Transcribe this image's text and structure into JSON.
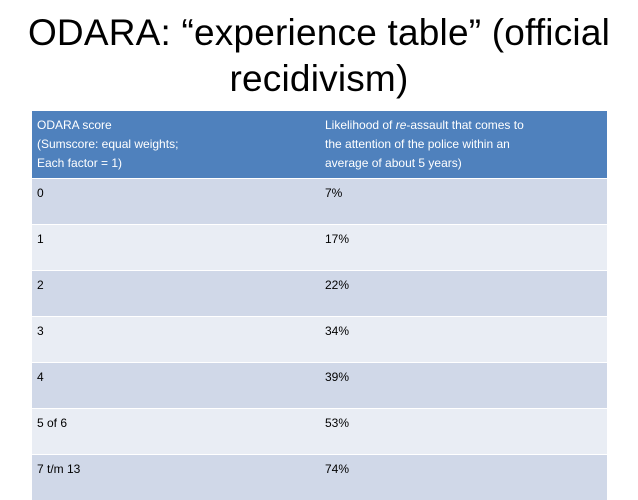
{
  "title": {
    "line1": "ODARA: “experience table” (official",
    "line2": "recidivism)"
  },
  "table": {
    "header": {
      "col1": {
        "line1": "ODARA score",
        "line2": "(Sumscore: equal weights;",
        "line3": "Each factor = 1)"
      },
      "col2": {
        "line1_pre": "Likelihood of ",
        "line1_em": "re",
        "line1_post": "-assault  that comes to",
        "line2": "the attention of the police within an",
        "line3": "average of about 5 years)"
      }
    },
    "rows": [
      {
        "score": "0",
        "likelihood": "7%"
      },
      {
        "score": "1",
        "likelihood": "17%"
      },
      {
        "score": "2",
        "likelihood": "22%"
      },
      {
        "score": "3",
        "likelihood": "34%"
      },
      {
        "score": "4",
        "likelihood": "39%"
      },
      {
        "score": "5 of 6",
        "likelihood": "53%"
      },
      {
        "score": "7 t/m 13",
        "likelihood": "74%"
      }
    ]
  },
  "colors": {
    "header_bg": "#4f81bd",
    "row_odd": "#d0d8e8",
    "row_even": "#e9edf4"
  }
}
